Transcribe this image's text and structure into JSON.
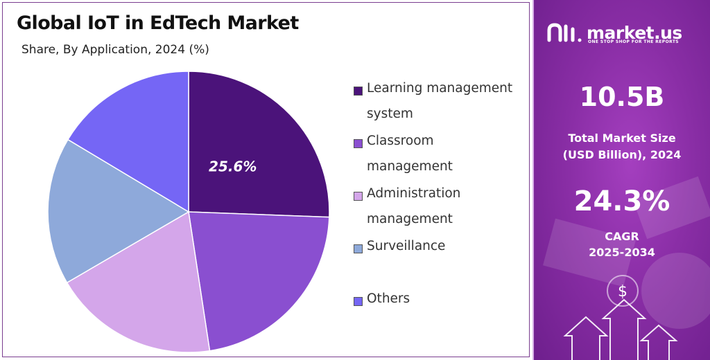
{
  "chart_data": {
    "type": "pie",
    "title": "Global IoT in EdTech Market",
    "subtitle": "Share, By Application, 2024 (%)",
    "slices": [
      {
        "label": "Learning management system",
        "value": 25.6,
        "color": "#4b137a",
        "data_label": "25.6%"
      },
      {
        "label": "Classroom management",
        "value": 22.0,
        "color": "#8a4fd0"
      },
      {
        "label": "Administration management",
        "value": 19.0,
        "color": "#d4a6ea"
      },
      {
        "label": "Surveillance",
        "value": 17.0,
        "color": "#8ea9da"
      },
      {
        "label": "Others",
        "value": 16.4,
        "color": "#7566f5"
      }
    ],
    "legend_position": "right"
  },
  "side_panel": {
    "brand_name": "market.us",
    "brand_tagline": "ONE STOP SHOP FOR THE REPORTS",
    "market_size_value": "10.5B",
    "market_size_label_line1": "Total Market Size",
    "market_size_label_line2": "(USD Billion), 2024",
    "cagr_value": "24.3%",
    "cagr_label_line1": "CAGR",
    "cagr_label_line2": "2025-2034",
    "dollar_symbol": "$",
    "accent_color": "#8a2ea6"
  }
}
